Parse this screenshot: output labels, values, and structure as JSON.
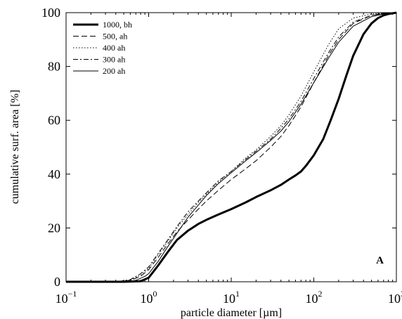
{
  "chart_data": {
    "type": "line",
    "title": "",
    "xlabel": "particle diameter [µm]",
    "ylabel": "cumulative surf. area [%]",
    "x_scale": "log",
    "xlim": [
      0.1,
      1000
    ],
    "ylim": [
      0,
      100
    ],
    "grid": false,
    "legend_position": "top-left",
    "panel_label": "A",
    "x_ticks": [
      {
        "base": "10",
        "exp": "−1"
      },
      {
        "base": "10",
        "exp": "0"
      },
      {
        "base": "10",
        "exp": "1"
      },
      {
        "base": "10",
        "exp": "2"
      },
      {
        "base": "10",
        "exp": "3"
      }
    ],
    "y_ticks": [
      "0",
      "20",
      "40",
      "60",
      "80",
      "100"
    ],
    "series": [
      {
        "name": "1000, bh",
        "style": "solid-thick",
        "x": [
          0.1,
          0.5,
          0.8,
          1.0,
          1.3,
          1.7,
          2.2,
          3,
          4,
          5,
          7,
          10,
          15,
          20,
          30,
          40,
          50,
          60,
          70,
          80,
          100,
          130,
          160,
          200,
          250,
          300,
          400,
          500,
          600,
          700,
          800,
          1000
        ],
        "y": [
          0,
          0,
          0.2,
          1.5,
          6,
          11,
          15.5,
          19,
          21.5,
          23,
          25,
          27,
          29.5,
          31.5,
          34,
          36,
          38,
          39.5,
          41,
          43,
          47,
          53,
          60,
          68,
          77,
          84,
          92,
          96,
          98,
          99,
          99.5,
          100
        ]
      },
      {
        "name": "500, ah",
        "style": "dashed",
        "x": [
          0.1,
          0.4,
          0.6,
          0.8,
          1.0,
          1.3,
          1.7,
          2.2,
          3,
          4,
          5,
          7,
          10,
          15,
          20,
          30,
          40,
          50,
          70,
          100,
          150,
          200,
          300,
          500,
          700,
          1000
        ],
        "y": [
          0,
          0,
          0.5,
          2,
          4.5,
          9,
          14,
          18.5,
          23,
          27,
          30,
          34,
          38,
          42,
          45,
          50,
          54,
          58,
          65,
          74,
          84,
          90,
          96,
          99,
          99.7,
          100
        ]
      },
      {
        "name": "400 ah",
        "style": "dotted",
        "x": [
          0.1,
          0.4,
          0.6,
          0.8,
          1.0,
          1.3,
          1.7,
          2.2,
          3,
          4,
          5,
          7,
          10,
          15,
          20,
          30,
          40,
          50,
          70,
          100,
          150,
          200,
          300,
          500,
          700,
          1000
        ],
        "y": [
          0,
          0,
          0.6,
          2.5,
          5,
          10,
          15,
          20,
          25,
          29.5,
          32.5,
          37,
          41,
          46,
          49,
          54,
          58,
          62,
          69,
          78,
          88,
          94,
          98,
          99.5,
          99.8,
          100
        ]
      },
      {
        "name": "300 ah",
        "style": "dashdot",
        "x": [
          0.1,
          0.4,
          0.6,
          0.8,
          1.0,
          1.3,
          1.7,
          2.2,
          3,
          4,
          5,
          7,
          10,
          15,
          20,
          30,
          40,
          50,
          70,
          100,
          150,
          200,
          300,
          500,
          700,
          1000
        ],
        "y": [
          0,
          0,
          0.8,
          3,
          5.5,
          10.5,
          15.5,
          20.5,
          26,
          30,
          33,
          37.5,
          41,
          45.5,
          48.5,
          53,
          57,
          60.5,
          67,
          75.5,
          85,
          91,
          96.5,
          99,
          99.7,
          100
        ]
      },
      {
        "name": "200 ah",
        "style": "solid-thin",
        "x": [
          0.1,
          0.5,
          0.7,
          0.9,
          1.0,
          1.3,
          1.7,
          2.2,
          3,
          4,
          5,
          7,
          10,
          15,
          20,
          30,
          40,
          50,
          70,
          100,
          150,
          200,
          300,
          500,
          700,
          1000
        ],
        "y": [
          0,
          0,
          0.5,
          2,
          3,
          7.5,
          13,
          18,
          24,
          28.5,
          32,
          36.5,
          40.5,
          45,
          48,
          52.5,
          56,
          59.5,
          66,
          74,
          83,
          89,
          95,
          98.5,
          99.5,
          100
        ]
      }
    ]
  }
}
